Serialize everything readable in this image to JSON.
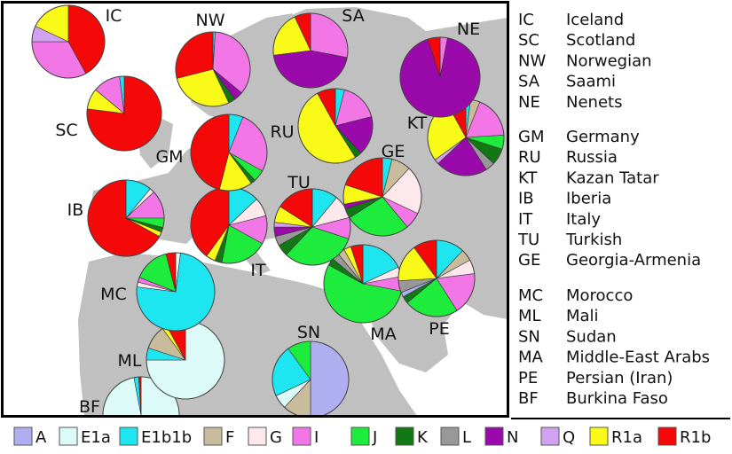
{
  "colors": {
    "A": "#aeaef0",
    "E1a": "#dcfaf8",
    "E1b1b": "#1ee6f0",
    "F": "#c8bc9c",
    "G": "#fde8ec",
    "I": "#f276e6",
    "J": "#1eec3c",
    "K": "#127814",
    "L": "#989898",
    "N": "#9a0aaa",
    "Q": "#d2a2f2",
    "R1a": "#fafa18",
    "R1b": "#f40808"
  },
  "map": {
    "land_color": "#c0c0c0",
    "sea_color": "#ffffff"
  },
  "chart_data": {
    "type": "pie",
    "haplogroups": [
      "A",
      "E1a",
      "E1b1b",
      "F",
      "G",
      "I",
      "J",
      "K",
      "L",
      "N",
      "Q",
      "R1a",
      "R1b"
    ],
    "populations": [
      {
        "code": "IC",
        "name": "Iceland",
        "slices": [
          {
            "g": "R1b",
            "v": 42
          },
          {
            "g": "I",
            "v": 33
          },
          {
            "g": "Q",
            "v": 7
          },
          {
            "g": "R1a",
            "v": 18
          }
        ]
      },
      {
        "code": "SC",
        "name": "Scotland",
        "slices": [
          {
            "g": "R1b",
            "v": 77
          },
          {
            "g": "R1a",
            "v": 9
          },
          {
            "g": "I",
            "v": 12
          },
          {
            "g": "E1b1b",
            "v": 2
          }
        ]
      },
      {
        "code": "NW",
        "name": "Norwegian",
        "slices": [
          {
            "g": "E1b1b",
            "v": 1
          },
          {
            "g": "I",
            "v": 35
          },
          {
            "g": "N",
            "v": 4
          },
          {
            "g": "K",
            "v": 3
          },
          {
            "g": "R1a",
            "v": 28
          },
          {
            "g": "R1b",
            "v": 29
          }
        ]
      },
      {
        "code": "SA",
        "name": "Saami",
        "slices": [
          {
            "g": "I",
            "v": 28
          },
          {
            "g": "N",
            "v": 45
          },
          {
            "g": "R1a",
            "v": 20
          },
          {
            "g": "R1b",
            "v": 7
          }
        ]
      },
      {
        "code": "NE",
        "name": "Nenets",
        "slices": [
          {
            "g": "I",
            "v": 3
          },
          {
            "g": "N",
            "v": 92
          },
          {
            "g": "R1b",
            "v": 5
          }
        ]
      },
      {
        "code": "GM",
        "name": "Germany",
        "slices": [
          {
            "g": "E1b1b",
            "v": 6
          },
          {
            "g": "I",
            "v": 27
          },
          {
            "g": "J",
            "v": 5
          },
          {
            "g": "K",
            "v": 2
          },
          {
            "g": "R1a",
            "v": 14
          },
          {
            "g": "R1b",
            "v": 46
          }
        ]
      },
      {
        "code": "RU",
        "name": "Russia",
        "slices": [
          {
            "g": "E1b1b",
            "v": 4
          },
          {
            "g": "I",
            "v": 17
          },
          {
            "g": "N",
            "v": 17
          },
          {
            "g": "K",
            "v": 3
          },
          {
            "g": "R1a",
            "v": 51
          },
          {
            "g": "R1b",
            "v": 8
          }
        ]
      },
      {
        "code": "KT",
        "name": "Kazan Tatar",
        "slices": [
          {
            "g": "E1b1b",
            "v": 2
          },
          {
            "g": "F",
            "v": 4
          },
          {
            "g": "I",
            "v": 18
          },
          {
            "g": "J",
            "v": 6
          },
          {
            "g": "K",
            "v": 7
          },
          {
            "g": "L",
            "v": 4
          },
          {
            "g": "N",
            "v": 22
          },
          {
            "g": "Q",
            "v": 2
          },
          {
            "g": "R1a",
            "v": 27
          },
          {
            "g": "R1b",
            "v": 8
          }
        ]
      },
      {
        "code": "IB",
        "name": "Iberia",
        "slices": [
          {
            "g": "E1b1b",
            "v": 11
          },
          {
            "g": "G",
            "v": 2
          },
          {
            "g": "I",
            "v": 12
          },
          {
            "g": "J",
            "v": 4
          },
          {
            "g": "K",
            "v": 2
          },
          {
            "g": "R1a",
            "v": 2
          },
          {
            "g": "R1b",
            "v": 67
          }
        ]
      },
      {
        "code": "IT",
        "name": "Italy",
        "slices": [
          {
            "g": "E1b1b",
            "v": 13
          },
          {
            "g": "G",
            "v": 8
          },
          {
            "g": "I",
            "v": 12
          },
          {
            "g": "J",
            "v": 20
          },
          {
            "g": "K",
            "v": 3
          },
          {
            "g": "R1a",
            "v": 4
          },
          {
            "g": "R1b",
            "v": 40
          }
        ]
      },
      {
        "code": "TU",
        "name": "Turkish",
        "slices": [
          {
            "g": "E1b1b",
            "v": 11
          },
          {
            "g": "G",
            "v": 10
          },
          {
            "g": "I",
            "v": 9
          },
          {
            "g": "J",
            "v": 32
          },
          {
            "g": "K",
            "v": 5
          },
          {
            "g": "L",
            "v": 4
          },
          {
            "g": "N",
            "v": 4
          },
          {
            "g": "Q",
            "v": 2
          },
          {
            "g": "R1a",
            "v": 7
          },
          {
            "g": "R1b",
            "v": 16
          }
        ]
      },
      {
        "code": "GE",
        "name": "Georgia-Armenia",
        "slices": [
          {
            "g": "E1b1b",
            "v": 4
          },
          {
            "g": "F",
            "v": 8
          },
          {
            "g": "G",
            "v": 20
          },
          {
            "g": "I",
            "v": 7
          },
          {
            "g": "J",
            "v": 27
          },
          {
            "g": "K",
            "v": 4
          },
          {
            "g": "N",
            "v": 2
          },
          {
            "g": "R1a",
            "v": 8
          },
          {
            "g": "R1b",
            "v": 20
          }
        ]
      },
      {
        "code": "MC",
        "name": "Morocco",
        "slices": [
          {
            "g": "E1a",
            "v": 2
          },
          {
            "g": "E1b1b",
            "v": 75
          },
          {
            "g": "G",
            "v": 2
          },
          {
            "g": "I",
            "v": 2
          },
          {
            "g": "J",
            "v": 15
          },
          {
            "g": "R1b",
            "v": 4
          }
        ]
      },
      {
        "code": "ML",
        "name": "Mali",
        "slices": [
          {
            "g": "E1a",
            "v": 75
          },
          {
            "g": "E1b1b",
            "v": 5
          },
          {
            "g": "F",
            "v": 10
          },
          {
            "g": "R1a",
            "v": 2
          },
          {
            "g": "R1b",
            "v": 8
          }
        ]
      },
      {
        "code": "SN",
        "name": "Sudan",
        "slices": [
          {
            "g": "A",
            "v": 50
          },
          {
            "g": "F",
            "v": 12
          },
          {
            "g": "E1a",
            "v": 6
          },
          {
            "g": "E1b1b",
            "v": 22
          },
          {
            "g": "J",
            "v": 10
          }
        ]
      },
      {
        "code": "MA",
        "name": "Middle-East Arabs",
        "slices": [
          {
            "g": "E1b1b",
            "v": 18
          },
          {
            "g": "G",
            "v": 4
          },
          {
            "g": "I",
            "v": 6
          },
          {
            "g": "J",
            "v": 55
          },
          {
            "g": "K",
            "v": 3
          },
          {
            "g": "L",
            "v": 3
          },
          {
            "g": "F",
            "v": 3
          },
          {
            "g": "R1a",
            "v": 3
          },
          {
            "g": "R1b",
            "v": 5
          }
        ]
      },
      {
        "code": "PE",
        "name": "Persian (Iran)",
        "slices": [
          {
            "g": "E1b1b",
            "v": 12
          },
          {
            "g": "F",
            "v": 5
          },
          {
            "g": "G",
            "v": 6
          },
          {
            "g": "I",
            "v": 18
          },
          {
            "g": "J",
            "v": 23
          },
          {
            "g": "K",
            "v": 3
          },
          {
            "g": "A",
            "v": 2
          },
          {
            "g": "L",
            "v": 5
          },
          {
            "g": "R1a",
            "v": 16
          },
          {
            "g": "R1b",
            "v": 10
          }
        ]
      },
      {
        "code": "BF",
        "name": "Burkina Faso",
        "slices": [
          {
            "g": "E1a",
            "v": 97
          },
          {
            "g": "E1b1b",
            "v": 2
          },
          {
            "g": "R1b",
            "v": 1
          }
        ]
      }
    ]
  },
  "legend_groups": [
    [
      "IC",
      "SC",
      "NW",
      "SA",
      "NE"
    ],
    [
      "GM",
      "RU",
      "KT",
      "IB",
      "IT",
      "TU",
      "GE"
    ],
    [
      "MC",
      "ML",
      "SN",
      "MA",
      "PE",
      "BF"
    ]
  ]
}
